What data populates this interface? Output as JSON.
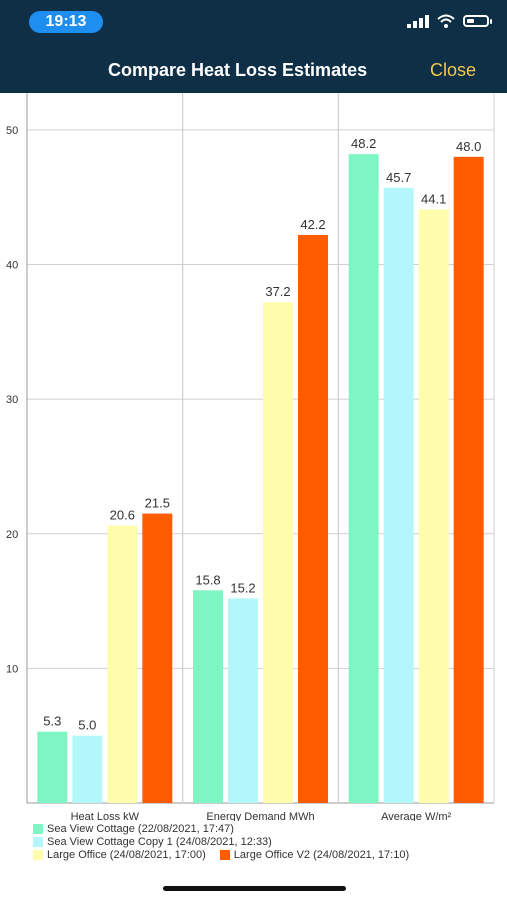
{
  "status": {
    "time": "19:13"
  },
  "header": {
    "title": "Compare Heat Loss Estimates",
    "close_label": "Close"
  },
  "icons": [
    "signal-icon",
    "wifi-icon",
    "battery-icon"
  ],
  "chart_data": {
    "type": "bar",
    "categories": [
      "Heat Loss kW",
      "Energy Demand MWh",
      "Average W/m²"
    ],
    "series": [
      {
        "name": "Sea View Cottage (22/08/2021, 17:47)",
        "color": "#7ef5c3",
        "values": [
          5.3,
          15.8,
          48.2
        ]
      },
      {
        "name": "Sea View Cottage Copy 1 (24/08/2021, 12:33)",
        "color": "#b3f7fa",
        "values": [
          5.0,
          15.2,
          45.7
        ]
      },
      {
        "name": "Large Office (24/08/2021, 17:00)",
        "color": "#fdfdad",
        "values": [
          20.6,
          37.2,
          44.1
        ]
      },
      {
        "name": "Large Office V2 (24/08/2021, 17:10)",
        "color": "#fd5c00",
        "values": [
          21.5,
          42.2,
          48.0
        ]
      }
    ],
    "y_ticks": [
      10,
      20,
      30,
      40,
      50
    ],
    "ylim": [
      0,
      52
    ],
    "grid": true,
    "legend_position": "bottom"
  }
}
